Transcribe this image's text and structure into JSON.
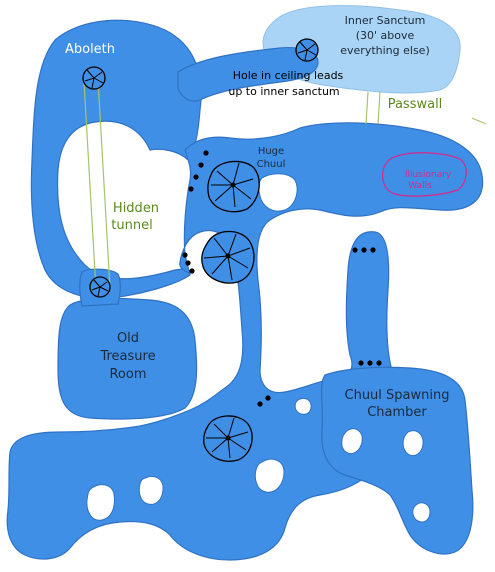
{
  "map": {
    "colors": {
      "water": "#3f8fe6",
      "water_outline": "#2f72c4",
      "sanctum": "#a9d4f5",
      "tunnel_line": "#a6c46a",
      "illusion_outline": "#d8288a",
      "ink": "#000000",
      "background": "#ffffff"
    },
    "labels": {
      "aboleth": "Aboleth",
      "hidden_tunnel_line1": "Hidden",
      "hidden_tunnel_line2": "tunnel",
      "old_treasure_line1": "Old",
      "old_treasure_line2": "Treasure",
      "old_treasure_line3": "Room",
      "inner_sanctum_line1": "Inner Sanctum",
      "inner_sanctum_line2": "(30' above",
      "inner_sanctum_line3": "everything else)",
      "hole_line1": "Hole in ceiling leads",
      "hole_line2": "up to inner sanctum",
      "passwall": "Passwall",
      "huge_chuul_line1": "Huge",
      "huge_chuul_line2": "Chuul",
      "illusionary_line1": "Illusionary",
      "illusionary_line2": "Walls",
      "spawning_line1": "Chuul Spawning",
      "spawning_line2": "Chamber"
    },
    "icons": [
      "whirlpool-icon",
      "chuul-icon",
      "door-dots-icon"
    ]
  }
}
